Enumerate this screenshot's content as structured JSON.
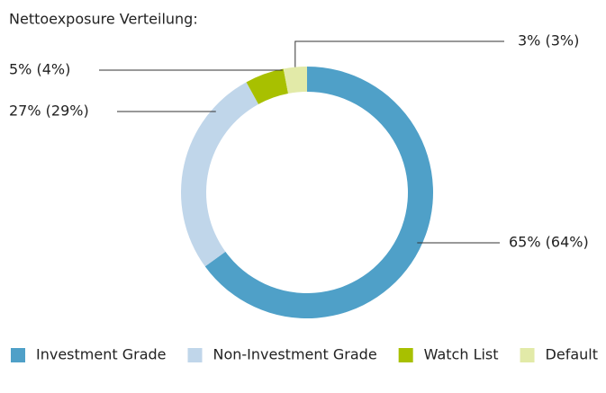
{
  "chart_data": {
    "type": "donut",
    "title": "Nettoexposure Verteilung:",
    "categories": [
      "Investment Grade",
      "Non-Investment Grade",
      "Watch List",
      "Default"
    ],
    "values": [
      65,
      27,
      5,
      3
    ],
    "value_labels": [
      "65% (64%)",
      "27% (29%)",
      "5% (4%)",
      "3% (3%)"
    ],
    "colors": [
      "#4fa0c8",
      "#c0d6ea",
      "#a8c000",
      "#e2eaa8"
    ],
    "legend": "bottom"
  }
}
